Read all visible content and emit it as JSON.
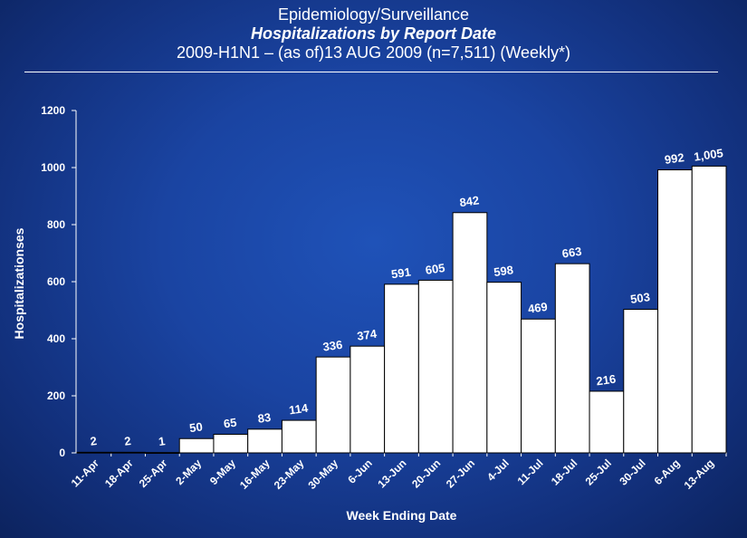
{
  "title": {
    "line1": "Epidemiology/Surveillance",
    "line2": "Hospitalizations by Report Date",
    "line3": "2009-H1N1 – (as of)13 AUG 2009 (n=7,511) (Weekly*)"
  },
  "colors": {
    "background": "#1a44a2",
    "bar_fill": "#ffffff",
    "bar_stroke": "#000000",
    "text": "#ffffff"
  },
  "chart_data": {
    "type": "bar",
    "title": "Hospitalizations by Report Date",
    "xlabel": "Week Ending Date",
    "ylabel": "Hospitalizationses",
    "ylim": [
      0,
      1200
    ],
    "yticks": [
      0,
      200,
      400,
      600,
      800,
      1000,
      1200
    ],
    "grid": false,
    "categories": [
      "11-Apr",
      "18-Apr",
      "25-Apr",
      "2-May",
      "9-May",
      "16-May",
      "23-May",
      "30-May",
      "6-Jun",
      "13-Jun",
      "20-Jun",
      "27-Jun",
      "4-Jul",
      "11-Jul",
      "18-Jul",
      "25-Jul",
      "30-Jul",
      "6-Aug",
      "13-Aug"
    ],
    "values": [
      2,
      2,
      1,
      50,
      65,
      83,
      114,
      336,
      374,
      591,
      605,
      842,
      598,
      469,
      663,
      216,
      503,
      992,
      1005
    ],
    "data_labels": [
      "2",
      "2",
      "1",
      "50",
      "65",
      "83",
      "114",
      "336",
      "374",
      "591",
      "605",
      "842",
      "598",
      "469",
      "663",
      "216",
      "503",
      "992",
      "1,005"
    ]
  }
}
